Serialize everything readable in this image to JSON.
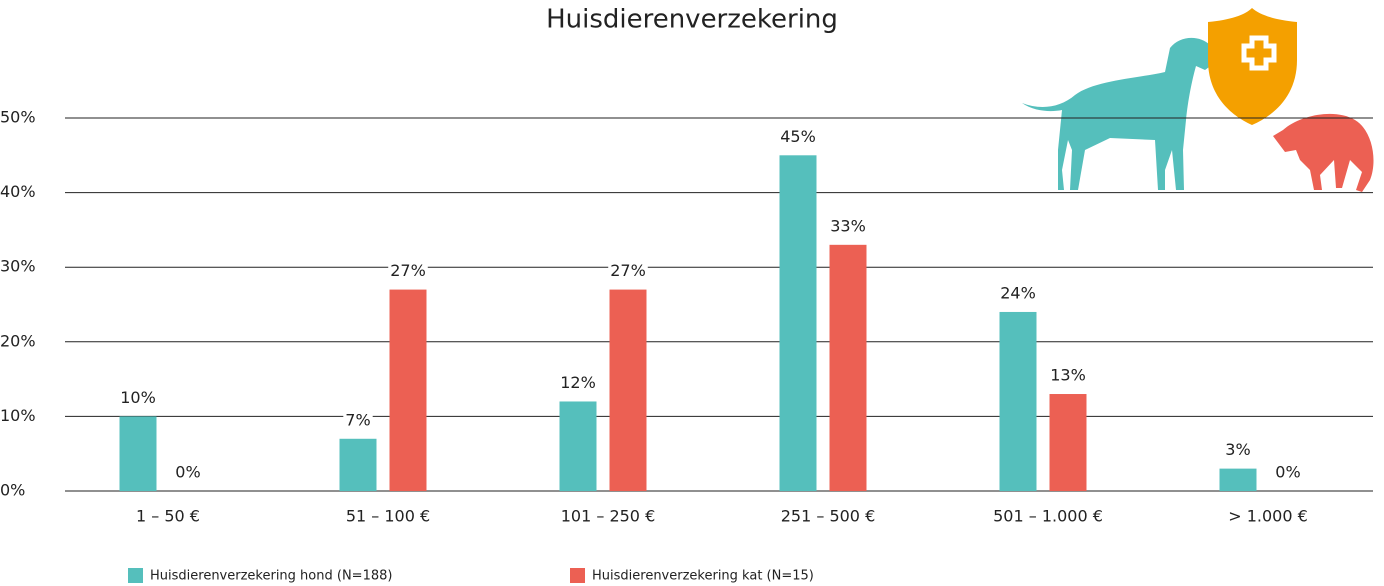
{
  "chart_data": {
    "type": "bar",
    "title": "Huisdierenverzekering",
    "categories": [
      "1 – 50 €",
      "51 – 100 €",
      "101 – 250 €",
      "251 – 500 €",
      "501 – 1.000 €",
      "> 1.000 €"
    ],
    "series": [
      {
        "name": "Huisdierenverzekering hond (N=188)",
        "color": "#55bfbc",
        "values": [
          10,
          7,
          12,
          45,
          24,
          3
        ],
        "value_labels": [
          "10%",
          "7%",
          "12%",
          "45%",
          "24%",
          "3%"
        ]
      },
      {
        "name": "Huisdierenverzekering kat (N=15)",
        "color": "#ec6053",
        "values": [
          0,
          27,
          27,
          33,
          13,
          0
        ],
        "value_labels": [
          "0%",
          "27%",
          "27%",
          "33%",
          "13%",
          "0%"
        ]
      }
    ],
    "ylim": [
      0,
      50
    ],
    "yticks": [
      {
        "value": 0,
        "label": "0%"
      },
      {
        "value": 10,
        "label": "10%"
      },
      {
        "value": 20,
        "label": "20%"
      },
      {
        "value": 30,
        "label": "30%"
      },
      {
        "value": 40,
        "label": "40%"
      },
      {
        "value": 50,
        "label": "50%"
      }
    ],
    "grid": true
  }
}
